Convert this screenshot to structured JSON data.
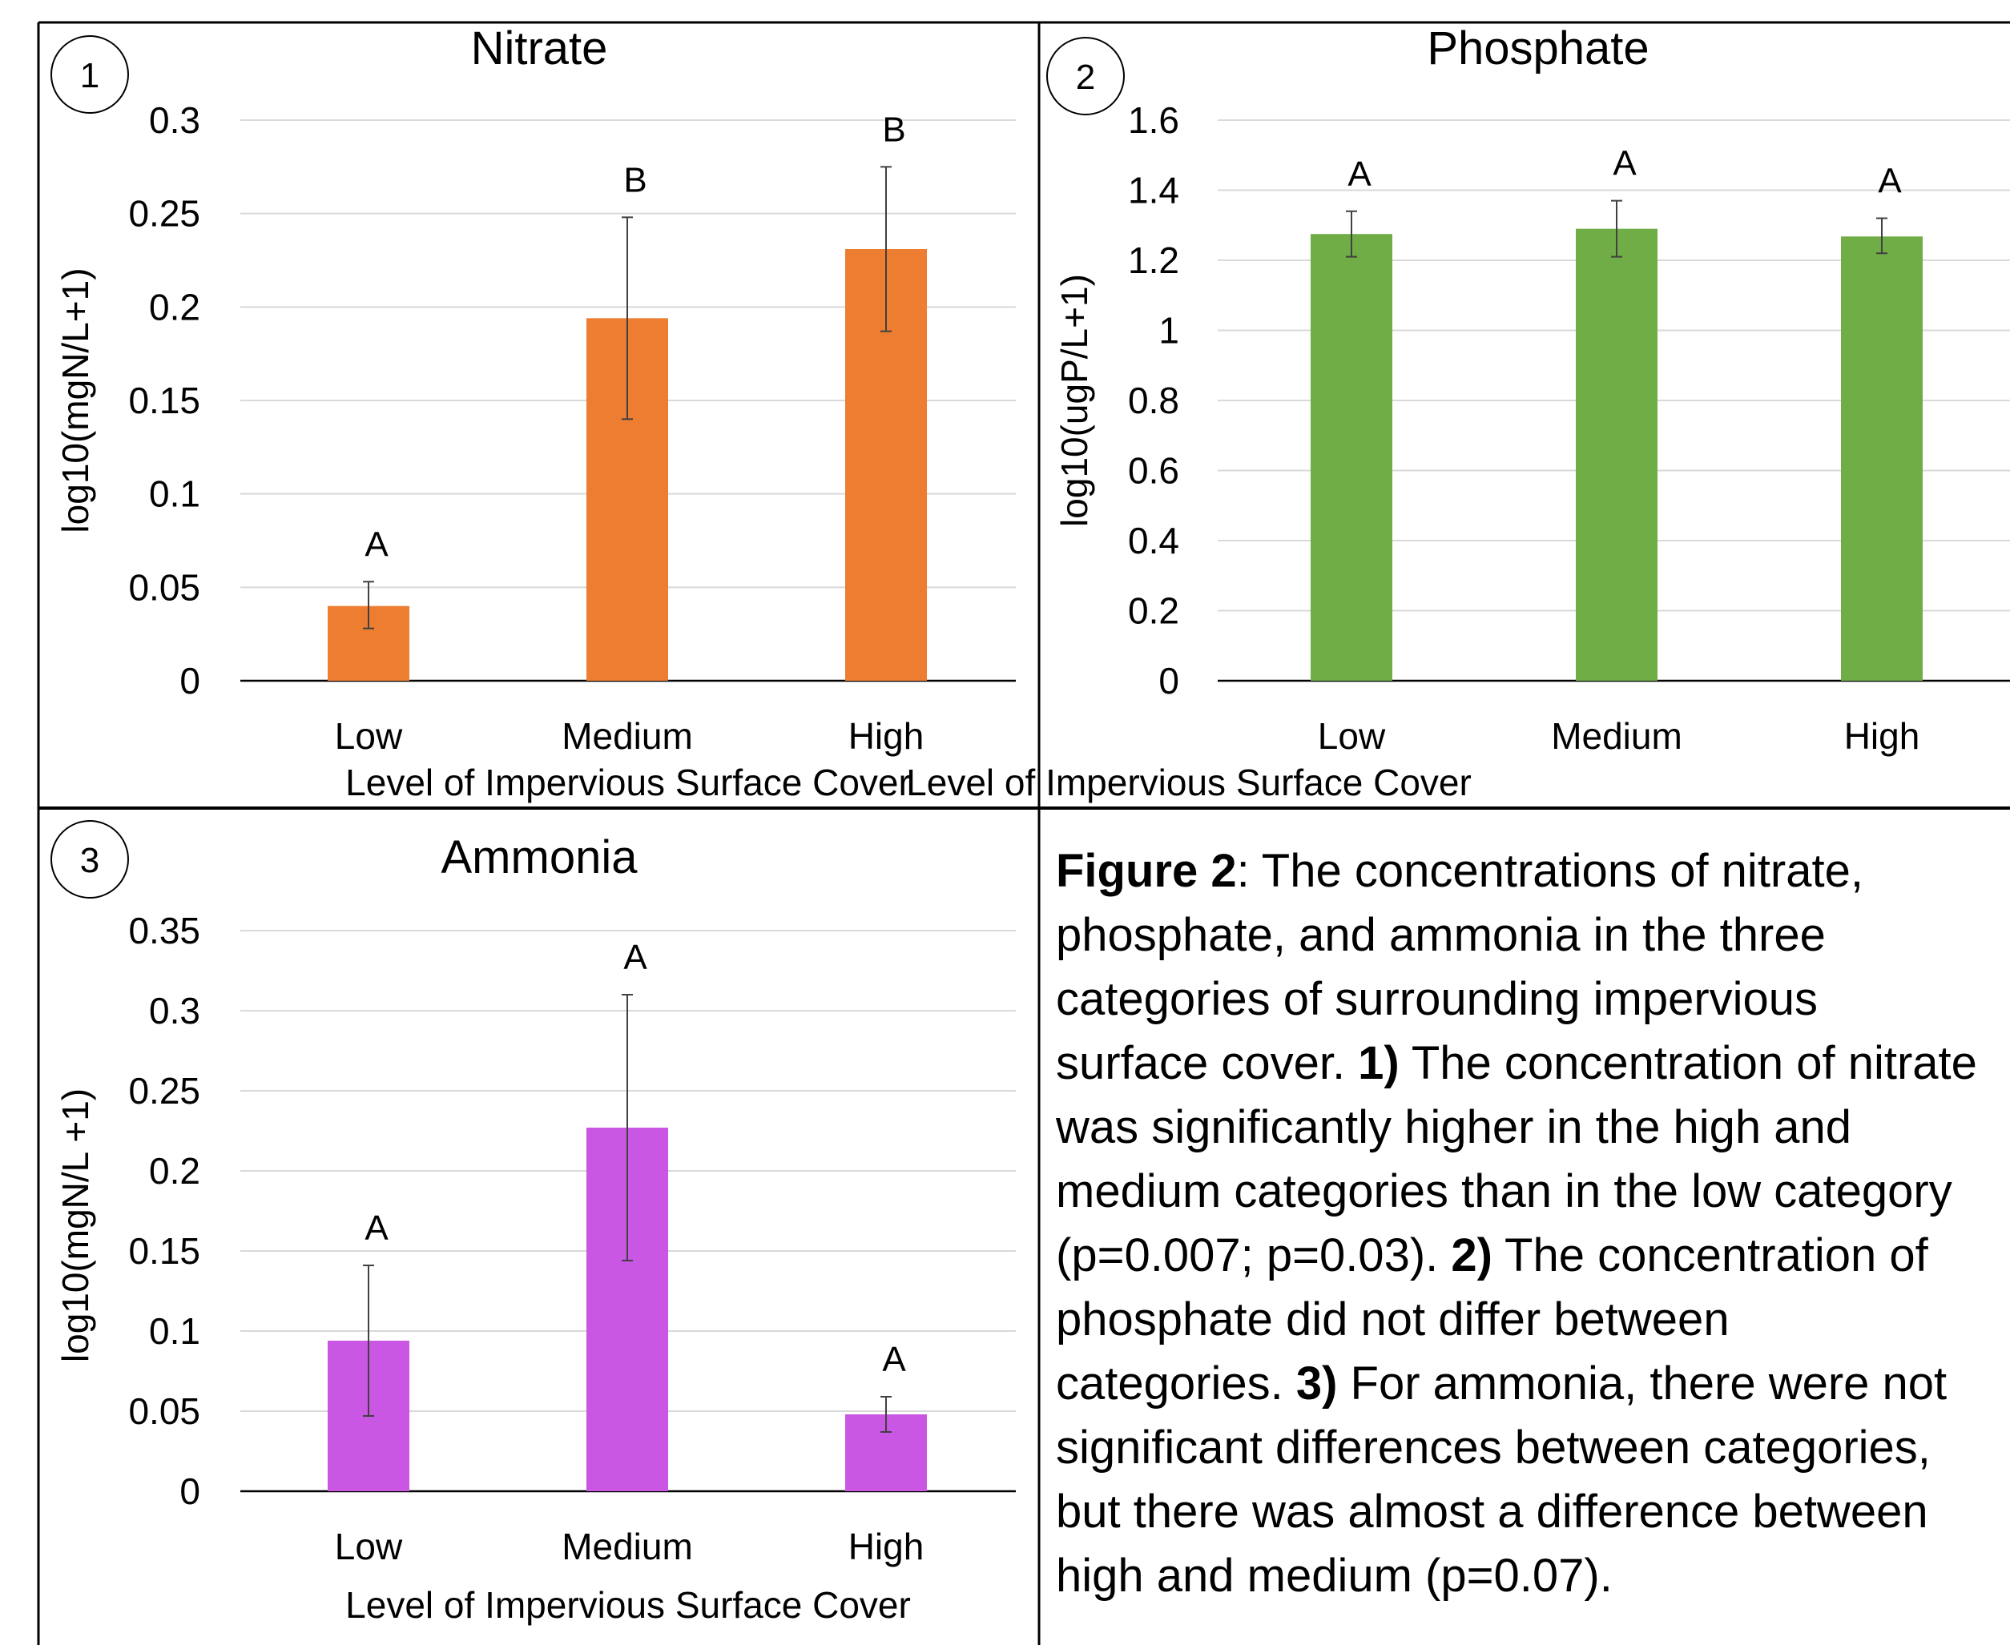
{
  "panels": [
    {
      "number": "1",
      "chart_data": {
        "type": "bar",
        "title": "Nitrate",
        "ylabel": "log10(mgN/L+1)",
        "xlabel": "Level of Impervious Surface Cover",
        "categories": [
          "Low",
          "Medium",
          "High"
        ],
        "values": [
          0.04,
          0.194,
          0.231
        ],
        "error_low": [
          0.028,
          0.14,
          0.187
        ],
        "error_high": [
          0.053,
          0.248,
          0.275
        ],
        "letters": [
          "A",
          "B",
          "B"
        ],
        "ylim": [
          0,
          0.3
        ],
        "yticks": [
          "0",
          "0.05",
          "0.1",
          "0.15",
          "0.2",
          "0.25",
          "0.3"
        ],
        "grid": true,
        "color": "#ED7D31"
      }
    },
    {
      "number": "2",
      "chart_data": {
        "type": "bar",
        "title": "Phosphate",
        "ylabel": "log10(ugP/L+1)",
        "xlabel": "Level of Impervious Surface Cover",
        "categories": [
          "Low",
          "Medium",
          "High"
        ],
        "values": [
          1.275,
          1.29,
          1.268
        ],
        "error_low": [
          1.21,
          1.21,
          1.22
        ],
        "error_high": [
          1.34,
          1.37,
          1.32
        ],
        "letters": [
          "A",
          "A",
          "A"
        ],
        "ylim": [
          0,
          1.6
        ],
        "yticks": [
          "0",
          "0.2",
          "0.4",
          "0.6",
          "0.8",
          "1",
          "1.2",
          "1.4",
          "1.6"
        ],
        "grid": true,
        "color": "#70AD47"
      }
    },
    {
      "number": "3",
      "chart_data": {
        "type": "bar",
        "title": "Ammonia",
        "ylabel": "log10(mgN/L +1)",
        "xlabel": "Level of Impervious Surface Cover",
        "categories": [
          "Low",
          "Medium",
          "High"
        ],
        "values": [
          0.094,
          0.227,
          0.048
        ],
        "error_low": [
          0.047,
          0.144,
          0.037
        ],
        "error_high": [
          0.141,
          0.31,
          0.059
        ],
        "letters": [
          "A",
          "A",
          "A"
        ],
        "ylim": [
          0,
          0.35
        ],
        "yticks": [
          "0",
          "0.05",
          "0.1",
          "0.15",
          "0.2",
          "0.25",
          "0.3",
          "0.35"
        ],
        "grid": true,
        "color": "#C957E4"
      }
    }
  ],
  "caption": {
    "lines": [
      [
        {
          "text": "Figure 2",
          "bold": true
        },
        {
          "text": ": The concentrations of nitrate,",
          "bold": false
        }
      ],
      [
        {
          "text": "phosphate, and ammonia in the three",
          "bold": false
        }
      ],
      [
        {
          "text": "categories of surrounding impervious",
          "bold": false
        }
      ],
      [
        {
          "text": "surface cover. ",
          "bold": false
        },
        {
          "text": "1)",
          "bold": true
        },
        {
          "text": " The concentration of nitrate",
          "bold": false
        }
      ],
      [
        {
          "text": "was significantly higher in the high and",
          "bold": false
        }
      ],
      [
        {
          "text": "medium categories than in the low category",
          "bold": false
        }
      ],
      [
        {
          "text": "(p=0.007; p=0.03). ",
          "bold": false
        },
        {
          "text": "2)",
          "bold": true
        },
        {
          "text": " The concentration of",
          "bold": false
        }
      ],
      [
        {
          "text": "phosphate did not differ between",
          "bold": false
        }
      ],
      [
        {
          "text": "categories. ",
          "bold": false
        },
        {
          "text": "3)",
          "bold": true
        },
        {
          "text": " For ammonia, there were not",
          "bold": false
        }
      ],
      [
        {
          "text": "significant differences between categories,",
          "bold": false
        }
      ],
      [
        {
          "text": "but there was almost a difference between",
          "bold": false
        }
      ],
      [
        {
          "text": "high and medium (p=0.07).",
          "bold": false
        }
      ]
    ]
  }
}
